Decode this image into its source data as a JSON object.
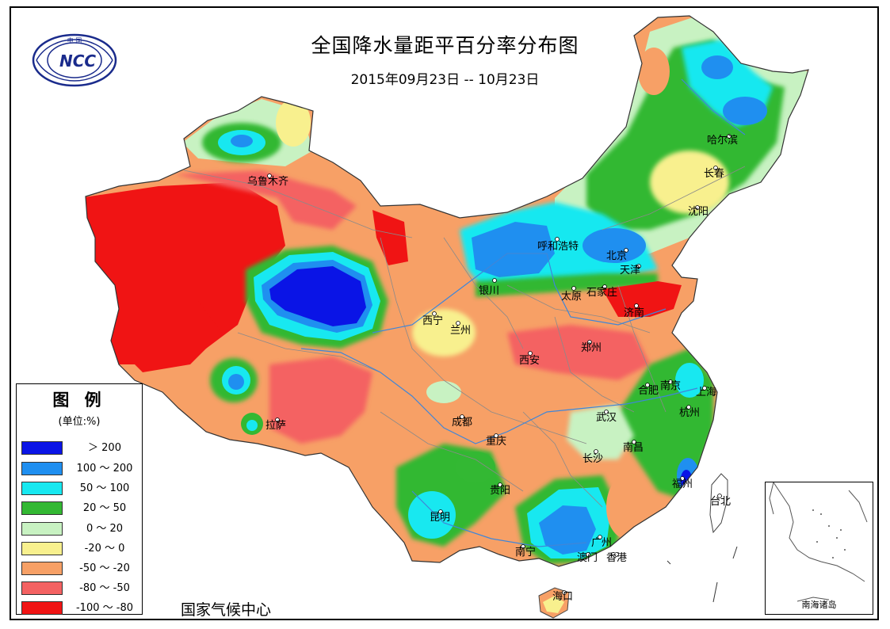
{
  "title": "全国降水量距平百分率分布图",
  "subtitle": "2015年09月23日 -- 10月23日",
  "logo": {
    "top_text": "中 国",
    "mark": "NCC"
  },
  "organization": "国家气候中心",
  "legend": {
    "title": "图 例",
    "unit": "(单位:%)",
    "items": [
      {
        "label": "＞ 200",
        "color": "#0a14e6"
      },
      {
        "label": "100 ～ 200",
        "color": "#1f8ff0"
      },
      {
        "label": "50 ～ 100",
        "color": "#18e8f0"
      },
      {
        "label": "20 ～ 50",
        "color": "#33b833"
      },
      {
        "label": "0 ～ 20",
        "color": "#c8f2c2"
      },
      {
        "label": "-20 ～ 0",
        "color": "#f8f08e"
      },
      {
        "label": "-50 ～ -20",
        "color": "#f7a066"
      },
      {
        "label": "-80 ～ -50",
        "color": "#f46262"
      },
      {
        "label": "-100 ～ -80",
        "color": "#f01414"
      }
    ]
  },
  "inset": {
    "label": "南海诸岛"
  },
  "cities": [
    {
      "name": "乌鲁木齐"
    },
    {
      "name": "哈尔滨"
    },
    {
      "name": "长春"
    },
    {
      "name": "沈阳"
    },
    {
      "name": "呼和浩特"
    },
    {
      "name": "北京"
    },
    {
      "name": "天津"
    },
    {
      "name": "银川"
    },
    {
      "name": "太原"
    },
    {
      "name": "石家庄"
    },
    {
      "name": "济南"
    },
    {
      "name": "西宁"
    },
    {
      "name": "兰州"
    },
    {
      "name": "西安"
    },
    {
      "name": "郑州"
    },
    {
      "name": "合肥"
    },
    {
      "name": "南京"
    },
    {
      "name": "上海"
    },
    {
      "name": "杭州"
    },
    {
      "name": "武汉"
    },
    {
      "name": "成都"
    },
    {
      "name": "拉萨"
    },
    {
      "name": "重庆"
    },
    {
      "name": "南昌"
    },
    {
      "name": "长沙"
    },
    {
      "name": "贵阳"
    },
    {
      "name": "福州"
    },
    {
      "name": "台北"
    },
    {
      "name": "昆明"
    },
    {
      "name": "南宁"
    },
    {
      "name": "广州"
    },
    {
      "name": "澳门"
    },
    {
      "name": "香港"
    },
    {
      "name": "海口"
    }
  ]
}
